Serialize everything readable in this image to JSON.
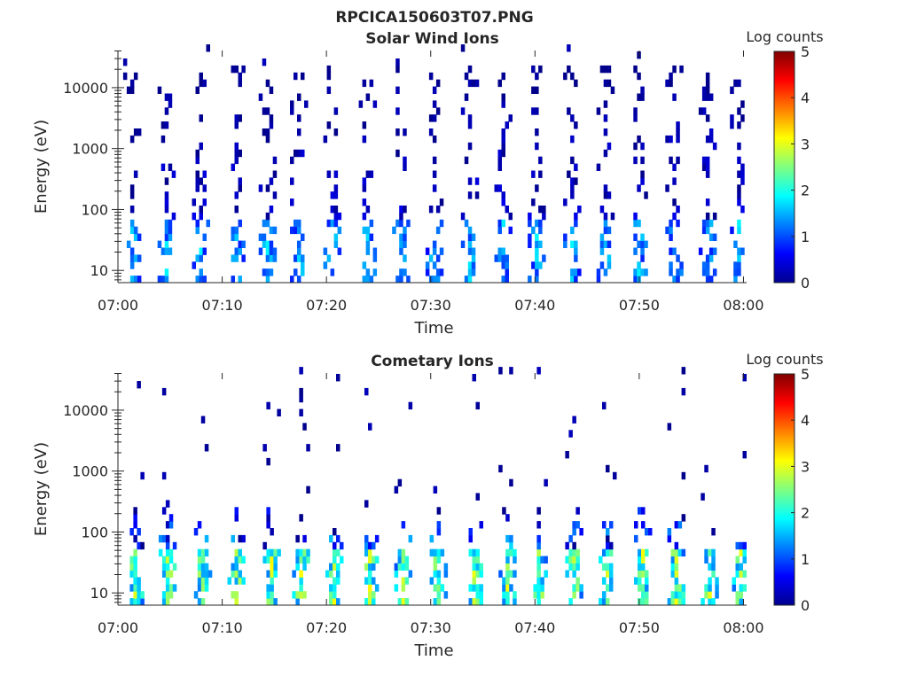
{
  "figure_title": "RPCICA150603T07.PNG",
  "chart_data": [
    {
      "type": "heatmap",
      "title": "Solar Wind Ions",
      "xlabel": "Time",
      "ylabel": "Energy (eV)",
      "x_unit": "minutes after 07:00",
      "xlim": [
        0,
        60.3
      ],
      "ylim": [
        6.3,
        40700
      ],
      "yscale": "log",
      "xticks": [
        0,
        10,
        20,
        30,
        40,
        50,
        60
      ],
      "xtick_labels": [
        "07:00",
        "07:10",
        "07:20",
        "07:30",
        "07:40",
        "07:50",
        "08:00"
      ],
      "yticks": [
        10,
        100,
        1000,
        10000
      ],
      "ytick_labels": [
        "10",
        "100",
        "1000",
        "10000"
      ],
      "colorbar": {
        "label": "Log counts",
        "range": [
          0,
          5
        ],
        "ticks": [
          "0",
          "1",
          "2",
          "3",
          "4",
          "5"
        ],
        "colormap": "jet"
      },
      "sweep_times_min": [
        1.2,
        4.5,
        7.8,
        11.2,
        14.2,
        17.2,
        20.4,
        23.8,
        27.0,
        30.2,
        33.6,
        36.8,
        40.0,
        43.4,
        46.6,
        49.8,
        53.2,
        56.4,
        59.4
      ],
      "sweep_profile": {
        "low_energy_max_eV": 60,
        "high_energy_max_eV": 20000,
        "low_peak_log_counts": 1.9,
        "high_peak_log_counts": 0.6,
        "low_fill": 0.6,
        "high_fill": 0.28
      }
    },
    {
      "type": "heatmap",
      "title": "Cometary Ions",
      "xlabel": "Time",
      "ylabel": "Energy (eV)",
      "x_unit": "minutes after 07:00",
      "xlim": [
        0,
        60.3
      ],
      "ylim": [
        6.3,
        40700
      ],
      "yscale": "log",
      "xticks": [
        0,
        10,
        20,
        30,
        40,
        50,
        60
      ],
      "xtick_labels": [
        "07:00",
        "07:10",
        "07:20",
        "07:30",
        "07:40",
        "07:50",
        "08:00"
      ],
      "yticks": [
        10,
        100,
        1000,
        10000
      ],
      "ytick_labels": [
        "10",
        "100",
        "1000",
        "10000"
      ],
      "colorbar": {
        "label": "Log counts",
        "range": [
          0,
          5
        ],
        "ticks": [
          "0",
          "1",
          "2",
          "3",
          "4",
          "5"
        ],
        "colormap": "jet"
      },
      "sweep_times_min": [
        1.5,
        4.6,
        8.0,
        11.2,
        14.6,
        17.4,
        20.6,
        24.0,
        27.2,
        30.6,
        34.0,
        37.2,
        40.2,
        43.6,
        46.8,
        50.2,
        53.4,
        56.6,
        59.6
      ],
      "sweep_profile": {
        "low_energy_max_eV": 45,
        "high_energy_max_eV": 400,
        "low_peak_log_counts": 3.2,
        "high_peak_log_counts": 1.8,
        "low_fill": 0.92,
        "high_fill": 0.5
      }
    }
  ]
}
